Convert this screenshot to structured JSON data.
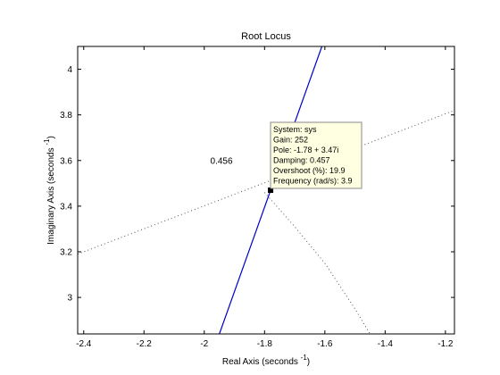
{
  "chart_data": {
    "type": "line",
    "title": "Root Locus",
    "xlabel": {
      "text": "Real Axis (seconds",
      "exp": "-1",
      "close": ")"
    },
    "ylabel": {
      "text": "Imaginary Axis (seconds",
      "exp": "-1",
      "close": ")"
    },
    "xlim": [
      -2.42,
      -1.17
    ],
    "ylim": [
      2.84,
      4.1
    ],
    "xticks": [
      -2.4,
      -2.2,
      -2,
      -1.8,
      -1.6,
      -1.4,
      -1.2
    ],
    "xtick_labels": [
      "-2.4",
      "-2.2",
      "-2",
      "-1.8",
      "-1.6",
      "-1.4",
      "-1.2"
    ],
    "yticks": [
      3,
      3.2,
      3.4,
      3.6,
      3.8,
      4
    ],
    "ytick_labels": [
      "3",
      "3.2",
      "3.4",
      "3.6",
      "3.8",
      "4"
    ],
    "grid": false,
    "series": [
      {
        "style": "solid",
        "color": "#0000cc",
        "x": [
          -1.95,
          -1.78,
          -1.61
        ],
        "y": [
          2.84,
          3.47,
          4.1
        ]
      }
    ],
    "damping_line": {
      "label": "0.456",
      "color": "#555555",
      "x": [
        -2.42,
        -1.17
      ],
      "y": [
        3.19,
        3.82
      ]
    },
    "frequency_arc": {
      "color": "#555555",
      "x": [
        -1.8,
        -1.7,
        -1.6,
        -1.5,
        -1.45
      ],
      "y": [
        3.46,
        3.31,
        3.15,
        2.95,
        2.84
      ]
    },
    "marker": {
      "x": -1.78,
      "y": 3.47,
      "color": "#000000"
    },
    "datatip": {
      "lines": [
        "System: sys",
        "Gain: 252",
        "Pole: -1.78 + 3.47i",
        "Damping: 0.457",
        "Overshoot (%): 19.9",
        "Frequency (rad/s): 3.9"
      ],
      "background": "#ffffe1",
      "border": "#888888"
    }
  }
}
